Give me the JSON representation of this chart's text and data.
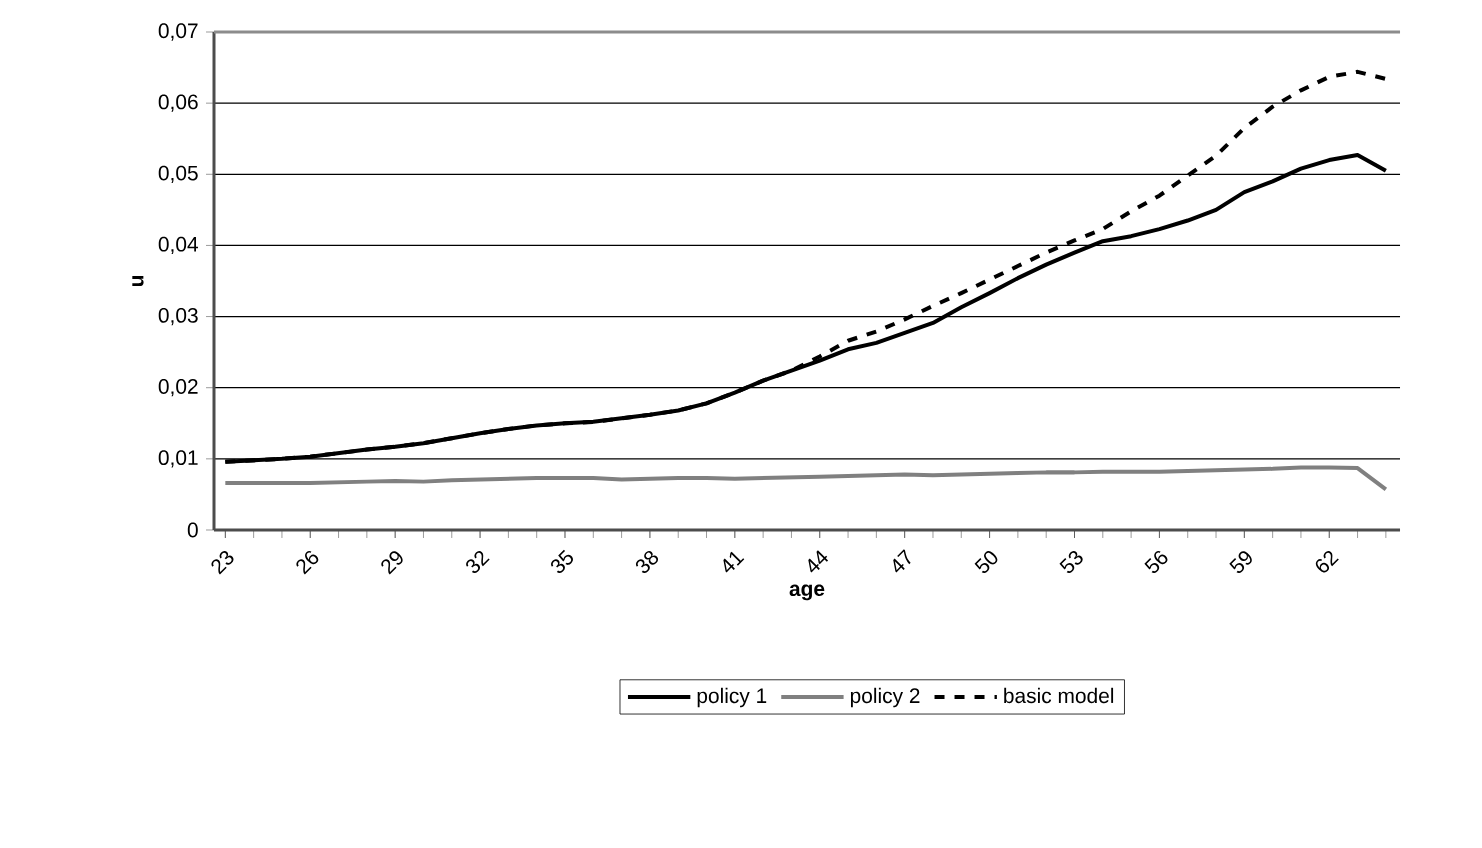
{
  "chart_data": {
    "type": "line",
    "xlabel": "age",
    "ylabel": "u",
    "categories": [
      "23",
      null,
      null,
      "26",
      null,
      null,
      "29",
      null,
      null,
      "32",
      null,
      null,
      "35",
      null,
      null,
      "38",
      null,
      null,
      "41",
      null,
      null,
      "44",
      null,
      null,
      "47",
      null,
      null,
      "50",
      null,
      null,
      "53",
      null,
      null,
      "56",
      null,
      null,
      "59",
      null,
      null,
      "62",
      null,
      null
    ],
    "series": [
      {
        "name": "policy 1",
        "color": "#000000",
        "line_style": "solid",
        "values": [
          0.0096,
          0.0098,
          0.01,
          0.0103,
          0.0108,
          0.0113,
          0.0117,
          0.0122,
          0.0129,
          0.0136,
          0.0142,
          0.0147,
          0.015,
          0.0152,
          0.0157,
          0.0162,
          0.0168,
          0.0178,
          0.0193,
          0.021,
          0.0224,
          0.0238,
          0.0254,
          0.0263,
          0.0277,
          0.0291,
          0.0313,
          0.0333,
          0.0354,
          0.0373,
          0.039,
          0.0406,
          0.0413,
          0.0423,
          0.0435,
          0.045,
          0.0475,
          0.049,
          0.0508,
          0.052,
          0.0527,
          0.0505
        ]
      },
      {
        "name": "policy 2",
        "color": "#808080",
        "line_style": "solid",
        "values": [
          0.0066,
          0.0066,
          0.0066,
          0.0066,
          0.0067,
          0.0068,
          0.0069,
          0.0068,
          0.007,
          0.0071,
          0.0072,
          0.0073,
          0.0073,
          0.0073,
          0.0071,
          0.0072,
          0.0073,
          0.0073,
          0.0072,
          0.0073,
          0.0074,
          0.0075,
          0.0076,
          0.0077,
          0.0078,
          0.0077,
          0.0078,
          0.0079,
          0.008,
          0.0081,
          0.0081,
          0.0082,
          0.0082,
          0.0082,
          0.0083,
          0.0084,
          0.0085,
          0.0086,
          0.0088,
          0.0088,
          0.0087,
          0.0057
        ]
      },
      {
        "name": "basic model",
        "color": "#000000",
        "line_style": "dashed",
        "values": [
          0.0096,
          0.0098,
          0.01,
          0.0103,
          0.0108,
          0.0113,
          0.0117,
          0.0122,
          0.0129,
          0.0136,
          0.0142,
          0.0147,
          0.015,
          0.0152,
          0.0157,
          0.0162,
          0.0168,
          0.0178,
          0.0193,
          0.021,
          0.0224,
          0.0244,
          0.0266,
          0.0279,
          0.0296,
          0.0315,
          0.0333,
          0.0352,
          0.0371,
          0.039,
          0.0407,
          0.0423,
          0.0448,
          0.047,
          0.0498,
          0.0526,
          0.0565,
          0.0595,
          0.0618,
          0.0637,
          0.0644,
          0.0634
        ]
      }
    ],
    "ylim": [
      0,
      0.07
    ],
    "yticks": [
      0,
      {
        "value": 0.01,
        "label": "0,01"
      },
      {
        "value": 0.02,
        "label": "0,02"
      },
      {
        "value": 0.03,
        "label": "0,03"
      },
      {
        "value": 0.04,
        "label": "0,04"
      },
      {
        "value": 0.05,
        "label": "0,05"
      },
      {
        "value": 0.06,
        "label": "0,06"
      },
      {
        "value": 0.07,
        "label": "0,07"
      }
    ],
    "grid": "y",
    "legend": "bottom"
  }
}
